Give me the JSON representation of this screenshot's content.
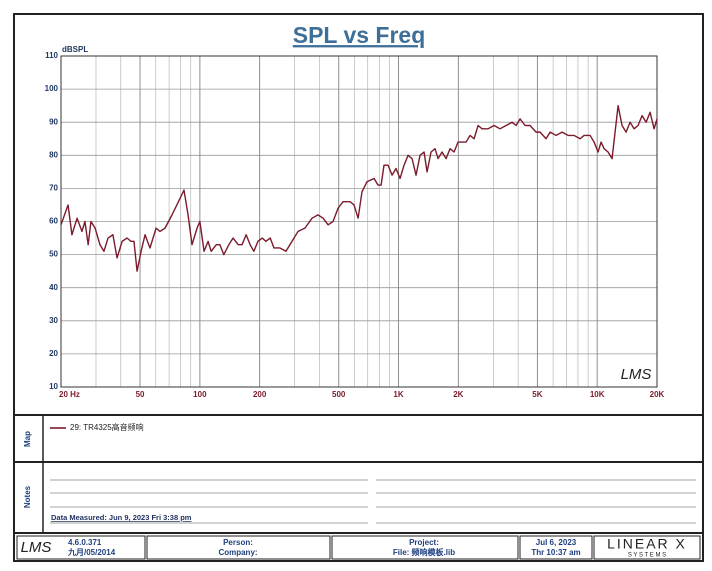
{
  "chart_data": {
    "type": "line",
    "title": "SPL vs Freq",
    "y_label": "dBSPL",
    "watermark": "LMS",
    "xscale": "log",
    "grid": true,
    "xlim": [
      20,
      20000
    ],
    "ylim": [
      10,
      110
    ],
    "xticks": [
      {
        "value": 20,
        "label": "20  Hz"
      },
      50,
      100,
      200,
      500,
      {
        "value": 1000,
        "label": "1K"
      },
      {
        "value": 2000,
        "label": "2K"
      },
      {
        "value": 5000,
        "label": "5K"
      },
      {
        "value": 10000,
        "label": "10K"
      },
      {
        "value": 20000,
        "label": "20K"
      }
    ],
    "yticks": [
      10,
      20,
      30,
      40,
      50,
      60,
      70,
      80,
      90,
      100,
      110
    ],
    "x": [
      20,
      21.7,
      22.7,
      24.1,
      25.5,
      26.4,
      27.4,
      28.3,
      29.7,
      31.4,
      32.9,
      34.5,
      36.5,
      38.3,
      40.6,
      43,
      45,
      46.6,
      48.3,
      50.6,
      53,
      56.1,
      60.2,
      63,
      66.8,
      72.4,
      79.5,
      83.2,
      87.2,
      91.3,
      96.8,
      100,
      105,
      110,
      114,
      121,
      126,
      132,
      140,
      147,
      156,
      163,
      171,
      179,
      187,
      196,
      206,
      215,
      226,
      236,
      253,
      271,
      291,
      312,
      338,
      367,
      393,
      417,
      442,
      468,
      496,
      526,
      570,
      597,
      626,
      655,
      694,
      753,
      789,
      817,
      845,
      886,
      928,
      971,
      1018,
      1066,
      1117,
      1170,
      1225,
      1283,
      1344,
      1392,
      1458,
      1527,
      1581,
      1656,
      1735,
      1817,
      1903,
      1994,
      2088,
      2187,
      2291,
      2400,
      2514,
      2633,
      2822,
      3026,
      3244,
      3478,
      3728,
      3905,
      4091,
      4335,
      4593,
      4924,
      5158,
      5530,
      5793,
      6211,
      6658,
      7138,
      7652,
      8203,
      8590,
      9210,
      9645,
      10100,
      10460,
      10830,
      11340,
      11880,
      12740,
      13340,
      13980,
      14640,
      15330,
      16060,
      16820,
      17630,
      18460,
      19340,
      20000
    ],
    "series": [
      {
        "name": "29: TR4325高音频响",
        "color": "#7b1a2a",
        "values": [
          59,
          65,
          56,
          61,
          57,
          60,
          53,
          60,
          58,
          53,
          51,
          55,
          56,
          49,
          54,
          55,
          54,
          54,
          45,
          51,
          56,
          52,
          58,
          57,
          58,
          62,
          67,
          69.5,
          62,
          53,
          58,
          60,
          51,
          54,
          51,
          53,
          53,
          50,
          53,
          55,
          53,
          53,
          56,
          53,
          51,
          54,
          55,
          54,
          55,
          52,
          52,
          51,
          54,
          57,
          58,
          61,
          62,
          61,
          59,
          60,
          64,
          66,
          66,
          65,
          61,
          69,
          72,
          73,
          71,
          71,
          77,
          77,
          74,
          76,
          73,
          77,
          80,
          79,
          74,
          80,
          81,
          75,
          81,
          82,
          79,
          81,
          79,
          82,
          81,
          84,
          84,
          84,
          86,
          85,
          89,
          88,
          88,
          89,
          88,
          89,
          90,
          89,
          91,
          89,
          89,
          87,
          87,
          85,
          87,
          86,
          87,
          86,
          86,
          85,
          86,
          86,
          84,
          81,
          84,
          82,
          81,
          79,
          95,
          89,
          87,
          90,
          88,
          89,
          92,
          90,
          93,
          88,
          91
        ]
      }
    ]
  },
  "panels": {
    "map": "Map",
    "notes": "Notes"
  },
  "notes": {
    "measured": "Data Measured: Jun  9, 2023  Fri  3:38 pm"
  },
  "footer": {
    "logo": "LMS",
    "version": "4.6.0.371",
    "build_date": "九月/05/2014",
    "person": "Person:",
    "company": "Company:",
    "project": "Project:",
    "file": "File: 频响模板.lib",
    "date": "Jul  6, 2023",
    "time": "Thr 10:37 am",
    "brand": "LINEAR X",
    "brand_sub": "S Y S T E M S"
  }
}
